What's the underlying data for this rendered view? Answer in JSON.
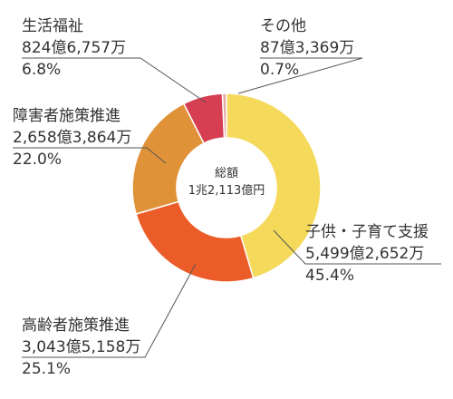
{
  "chart_data": {
    "type": "pie",
    "center_label": "総額",
    "center_value": "1兆2,113億円",
    "slices": [
      {
        "name": "子供・子育て支援",
        "amount": "5,499億2,652万",
        "percent_label": "45.4%",
        "value": 45.4,
        "color": "#f5d95b"
      },
      {
        "name": "高齢者施策推進",
        "amount": "3,043億5,158万",
        "percent_label": "25.1%",
        "value": 25.1,
        "color": "#ec5c29"
      },
      {
        "name": "障害者施策推進",
        "amount": "2,658億3,864万",
        "percent_label": "22.0%",
        "value": 22.0,
        "color": "#e09239"
      },
      {
        "name": "生活福祉",
        "amount": "824億6,757万",
        "percent_label": "6.8%",
        "value": 6.8,
        "color": "#d63f52"
      },
      {
        "name": "その他",
        "amount": "87億3,369万",
        "percent_label": "0.7%",
        "value": 0.7,
        "color": "#e7aaa4"
      }
    ]
  }
}
